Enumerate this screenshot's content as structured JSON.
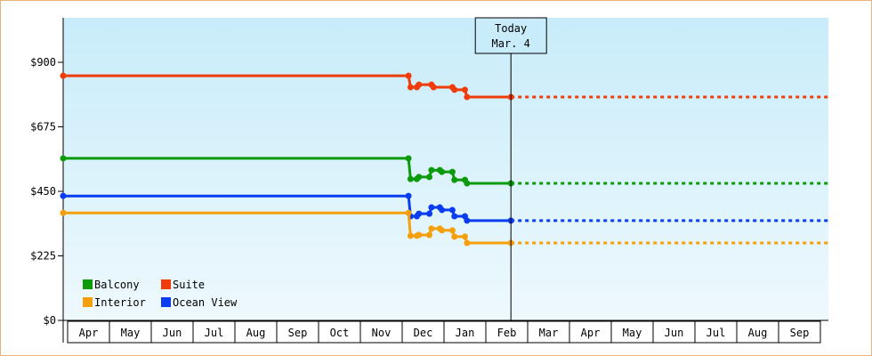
{
  "chart_data": {
    "type": "line",
    "title": "",
    "xlabel": "",
    "ylabel": "",
    "ylim": [
      0,
      1000
    ],
    "yticks": [
      0,
      225,
      450,
      675,
      900
    ],
    "ytick_labels": [
      "$0",
      "$225",
      "$450",
      "$675",
      "$900"
    ],
    "x_categories": [
      "Apr",
      "May",
      "Jun",
      "Jul",
      "Aug",
      "Sep",
      "Oct",
      "Nov",
      "Dec",
      "Jan",
      "Feb",
      "Mar",
      "Apr",
      "May",
      "Jun",
      "Jul",
      "Aug",
      "Sep"
    ],
    "grid": false,
    "legend_position": "bottom-left inside plot",
    "today_marker": {
      "line1": "Today",
      "line2": "Mar. 4",
      "month_index": 10.6
    },
    "series": [
      {
        "name": "Suite",
        "color": "#f03c0a",
        "points": [
          {
            "m": 0.0,
            "v": 853
          },
          {
            "m": 8.15,
            "v": 853
          },
          {
            "m": 8.2,
            "v": 813
          },
          {
            "m": 8.35,
            "v": 813
          },
          {
            "m": 8.4,
            "v": 822
          },
          {
            "m": 8.6,
            "v": 822
          },
          {
            "m": 8.7,
            "v": 822
          },
          {
            "m": 8.75,
            "v": 813
          },
          {
            "m": 9.2,
            "v": 813
          },
          {
            "m": 9.25,
            "v": 804
          },
          {
            "m": 9.5,
            "v": 804
          },
          {
            "m": 9.55,
            "v": 779
          },
          {
            "m": 10.6,
            "v": 779
          }
        ],
        "projection": {
          "from_m": 10.6,
          "to_m": 18.0,
          "v": 779
        }
      },
      {
        "name": "Balcony",
        "color": "#0a9a0a",
        "points": [
          {
            "m": 0.0,
            "v": 565
          },
          {
            "m": 8.15,
            "v": 565
          },
          {
            "m": 8.2,
            "v": 493
          },
          {
            "m": 8.35,
            "v": 493
          },
          {
            "m": 8.4,
            "v": 500
          },
          {
            "m": 8.65,
            "v": 500
          },
          {
            "m": 8.7,
            "v": 524
          },
          {
            "m": 8.9,
            "v": 524
          },
          {
            "m": 8.95,
            "v": 518
          },
          {
            "m": 9.2,
            "v": 518
          },
          {
            "m": 9.25,
            "v": 490
          },
          {
            "m": 9.5,
            "v": 490
          },
          {
            "m": 9.55,
            "v": 478
          },
          {
            "m": 10.6,
            "v": 478
          }
        ],
        "projection": {
          "from_m": 10.6,
          "to_m": 18.0,
          "v": 478
        }
      },
      {
        "name": "Ocean View",
        "color": "#0a3cf0",
        "points": [
          {
            "m": 0.0,
            "v": 434
          },
          {
            "m": 8.15,
            "v": 434
          },
          {
            "m": 8.2,
            "v": 363
          },
          {
            "m": 8.35,
            "v": 363
          },
          {
            "m": 8.4,
            "v": 372
          },
          {
            "m": 8.65,
            "v": 372
          },
          {
            "m": 8.7,
            "v": 394
          },
          {
            "m": 8.9,
            "v": 394
          },
          {
            "m": 8.95,
            "v": 385
          },
          {
            "m": 9.2,
            "v": 385
          },
          {
            "m": 9.25,
            "v": 363
          },
          {
            "m": 9.5,
            "v": 363
          },
          {
            "m": 9.55,
            "v": 348
          },
          {
            "m": 10.6,
            "v": 348
          }
        ],
        "projection": {
          "from_m": 10.6,
          "to_m": 18.0,
          "v": 348
        }
      },
      {
        "name": "Interior",
        "color": "#f5a00a",
        "points": [
          {
            "m": 0.0,
            "v": 375
          },
          {
            "m": 8.15,
            "v": 375
          },
          {
            "m": 8.2,
            "v": 295
          },
          {
            "m": 8.35,
            "v": 295
          },
          {
            "m": 8.4,
            "v": 298
          },
          {
            "m": 8.65,
            "v": 298
          },
          {
            "m": 8.7,
            "v": 320
          },
          {
            "m": 8.9,
            "v": 320
          },
          {
            "m": 8.95,
            "v": 314
          },
          {
            "m": 9.2,
            "v": 314
          },
          {
            "m": 9.25,
            "v": 292
          },
          {
            "m": 9.5,
            "v": 292
          },
          {
            "m": 9.55,
            "v": 270
          },
          {
            "m": 10.6,
            "v": 270
          }
        ],
        "projection": {
          "from_m": 10.6,
          "to_m": 18.0,
          "v": 270
        }
      }
    ]
  },
  "legend": {
    "items": [
      {
        "label": "Balcony",
        "color": "#0a9a0a"
      },
      {
        "label": "Suite",
        "color": "#f03c0a"
      },
      {
        "label": "Interior",
        "color": "#f5a00a"
      },
      {
        "label": "Ocean View",
        "color": "#0a3cf0"
      }
    ]
  },
  "colors": {
    "plot_bg_top": "#c8ecfa",
    "plot_bg_bottom": "#eef9fd",
    "frame_border": "#e8b27a",
    "axis": "#000000"
  }
}
